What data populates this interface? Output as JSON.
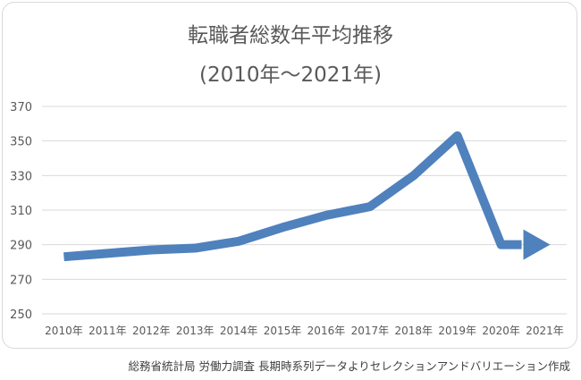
{
  "chart_data": {
    "type": "line",
    "title": "転職者総数年平均推移",
    "subtitle": "(2010年～2021年)",
    "categories": [
      "2010年",
      "2011年",
      "2012年",
      "2013年",
      "2014年",
      "2015年",
      "2016年",
      "2017年",
      "2018年",
      "2019年",
      "2020年",
      "2021年"
    ],
    "series": [
      {
        "values": [
          283,
          285,
          287,
          288,
          292,
          300,
          307,
          312,
          330,
          353,
          290,
          290
        ]
      }
    ],
    "y_ticks": [
      "250",
      "270",
      "290",
      "310",
      "330",
      "350",
      "370"
    ],
    "ylim": [
      250,
      370
    ],
    "xlabel": "",
    "ylabel": "",
    "grid": true,
    "legend": "none",
    "line_color": "#4f81bd",
    "grid_color": "#d9d9d9",
    "end_marker": "arrow"
  },
  "source_note": "総務省統計局 労働力調査 長期時系列データよりセレクションアンドバリエーション作成"
}
